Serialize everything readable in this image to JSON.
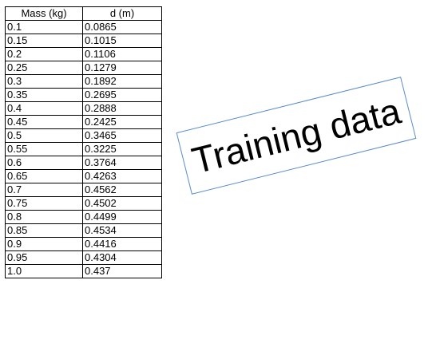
{
  "table": {
    "headers": [
      "Mass (kg)",
      "d (m)"
    ],
    "rows": [
      [
        "0.1",
        "0.0865"
      ],
      [
        "0.15",
        "0.1015"
      ],
      [
        "0.2",
        "0.1106"
      ],
      [
        "0.25",
        "0.1279"
      ],
      [
        "0.3",
        "0.1892"
      ],
      [
        "0.35",
        "0.2695"
      ],
      [
        "0.4",
        "0.2888"
      ],
      [
        "0.45",
        "0.2425"
      ],
      [
        "0.5",
        "0.3465"
      ],
      [
        "0.55",
        "0.3225"
      ],
      [
        "0.6",
        "0.3764"
      ],
      [
        "0.65",
        "0.4263"
      ],
      [
        "0.7",
        "0.4562"
      ],
      [
        "0.75",
        "0.4502"
      ],
      [
        "0.8",
        "0.4499"
      ],
      [
        "0.85",
        "0.4534"
      ],
      [
        "0.9",
        "0.4416"
      ],
      [
        "0.95",
        "0.4304"
      ],
      [
        "1.0",
        "0.437"
      ]
    ]
  },
  "label": {
    "text": "Training data",
    "border_color": "#5b8cc7"
  }
}
